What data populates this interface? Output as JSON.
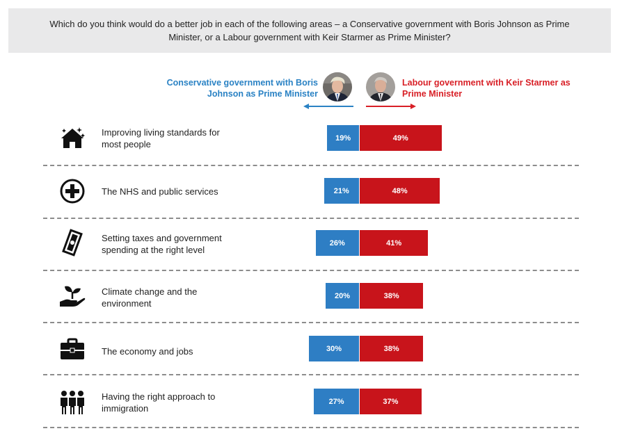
{
  "question": "Which do you think would do a better job in each of the following areas – a Conservative government with Boris Johnson as Prime Minister, or a Labour government with Keir Starmer as Prime Minister?",
  "legend": {
    "conservative": "Conservative government with Boris Johnson as Prime Minister",
    "labour": "Labour government with Keir Starmer as Prime Minister"
  },
  "colors": {
    "conservative": "#2e7ec4",
    "labour": "#c8141b",
    "conservative_text": "#2a82c4",
    "labour_text": "#d81f26"
  },
  "chart_data": {
    "type": "bar",
    "orientation": "diverging-horizontal",
    "categories": [
      "Improving living standards for most people",
      "The NHS and public services",
      "Setting taxes and government spending at the right level",
      "Climate change and the environment",
      "The economy and jobs",
      "Having the right approach to immigration"
    ],
    "category_icons": [
      "house-icon",
      "medical-cross-icon",
      "money-icon",
      "plant-in-hand-icon",
      "briefcase-icon",
      "people-group-icon"
    ],
    "series": [
      {
        "name": "Conservative government with Boris Johnson as Prime Minister",
        "values": [
          19,
          21,
          26,
          20,
          30,
          27
        ],
        "labels": [
          "19%",
          "21%",
          "26%",
          "20%",
          "30%",
          "27%"
        ]
      },
      {
        "name": "Labour government with Keir Starmer as Prime Minister",
        "values": [
          49,
          48,
          41,
          38,
          38,
          37
        ],
        "labels": [
          "49%",
          "48%",
          "41%",
          "38%",
          "38%",
          "37%"
        ]
      }
    ],
    "unit": "%"
  }
}
